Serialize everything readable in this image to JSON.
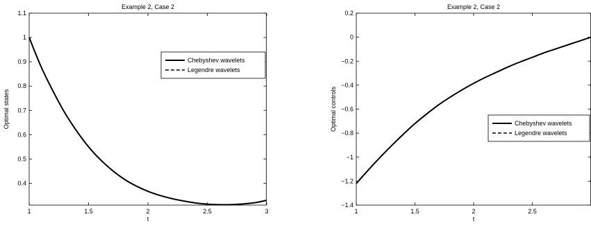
{
  "chart_data": [
    {
      "type": "line",
      "title": "Example 2, Case 2",
      "xlabel": "t",
      "ylabel": "Optimal states",
      "xlim": [
        1,
        3
      ],
      "ylim": [
        0.31,
        1.1
      ],
      "xticks": [
        1,
        1.5,
        2,
        2.5,
        3
      ],
      "xtick_labels": [
        "1",
        "1.5",
        "2",
        "2.5",
        "3"
      ],
      "yticks": [
        0.4,
        0.5,
        0.6,
        0.7,
        0.8,
        0.9,
        1,
        1.1
      ],
      "ytick_labels": [
        "0.4",
        "0.5",
        "0.6",
        "0.7",
        "0.8",
        "0.9",
        "1",
        "1.1"
      ],
      "legend_position": "upper-right",
      "x": [
        1.0,
        1.1,
        1.2,
        1.3,
        1.4,
        1.5,
        1.6,
        1.7,
        1.8,
        1.9,
        2.0,
        2.1,
        2.2,
        2.3,
        2.4,
        2.5,
        2.6,
        2.7,
        2.8,
        2.9,
        3.0
      ],
      "series": [
        {
          "name": "Chebyshev wavelets",
          "style": "solid",
          "values": [
            1.0,
            0.88,
            0.78,
            0.69,
            0.615,
            0.55,
            0.497,
            0.453,
            0.417,
            0.389,
            0.367,
            0.35,
            0.337,
            0.327,
            0.319,
            0.314,
            0.312,
            0.312,
            0.315,
            0.32,
            0.33
          ]
        },
        {
          "name": "Legendre wavelets",
          "style": "dashed",
          "values": [
            1.0,
            0.88,
            0.78,
            0.69,
            0.615,
            0.55,
            0.497,
            0.453,
            0.417,
            0.389,
            0.367,
            0.35,
            0.337,
            0.327,
            0.319,
            0.314,
            0.312,
            0.312,
            0.315,
            0.32,
            0.33
          ]
        }
      ]
    },
    {
      "type": "line",
      "title": "Example 2, Case 2",
      "xlabel": "t",
      "ylabel": "Optimal controls",
      "xlim": [
        1,
        3
      ],
      "ylim": [
        -1.4,
        0.2
      ],
      "xticks": [
        1,
        1.5,
        2,
        2.5
      ],
      "xtick_labels": [
        "1",
        "1.5",
        "2",
        "2.5"
      ],
      "yticks": [
        -1.4,
        -1.2,
        -1,
        -0.8,
        -0.6,
        -0.4,
        -0.2,
        0,
        0.2
      ],
      "ytick_labels": [
        "−1.4",
        "−1.2",
        "−1",
        "−0.8",
        "−0.6",
        "−0.4",
        "−0.2",
        "0",
        "0.2"
      ],
      "legend_position": "center-right",
      "x": [
        1.0,
        1.1,
        1.2,
        1.3,
        1.4,
        1.5,
        1.6,
        1.7,
        1.8,
        1.9,
        2.0,
        2.1,
        2.2,
        2.3,
        2.4,
        2.5,
        2.6,
        2.7,
        2.8,
        2.9,
        3.0
      ],
      "series": [
        {
          "name": "Chebyshev wavelets",
          "style": "solid",
          "values": [
            -1.22,
            -1.11,
            -1.005,
            -0.905,
            -0.81,
            -0.72,
            -0.64,
            -0.565,
            -0.5,
            -0.44,
            -0.385,
            -0.335,
            -0.29,
            -0.245,
            -0.205,
            -0.168,
            -0.13,
            -0.098,
            -0.065,
            -0.033,
            0.0
          ]
        },
        {
          "name": "Legendre wavelets",
          "style": "dashed",
          "values": [
            -1.22,
            -1.11,
            -1.005,
            -0.905,
            -0.81,
            -0.72,
            -0.64,
            -0.565,
            -0.5,
            -0.44,
            -0.385,
            -0.335,
            -0.29,
            -0.245,
            -0.205,
            -0.168,
            -0.13,
            -0.098,
            -0.065,
            -0.033,
            0.0
          ]
        }
      ]
    }
  ]
}
